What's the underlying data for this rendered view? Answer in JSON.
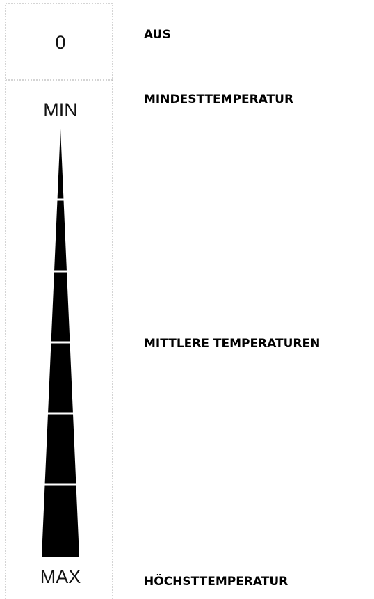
{
  "dial": {
    "off_label": "0",
    "min_label": "MIN",
    "max_label": "MAX"
  },
  "legend": [
    "AUS",
    "MINDESTTEMPERATUR",
    "MITTLERE TEMPERATUREN",
    "HÖCHSTTEMPERATUR"
  ]
}
